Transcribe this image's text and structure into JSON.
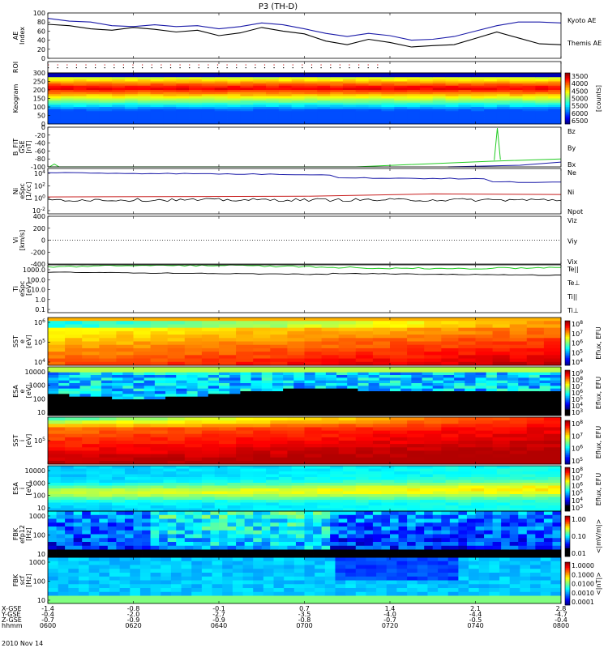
{
  "figure": {
    "title": "P3 (TH-D)",
    "date_label": "2010 Nov 14"
  },
  "colors": {
    "black": "#000000",
    "blue": "#1a1aa8",
    "red": "#c81e1e",
    "green": "#22cc22"
  },
  "chart_data": [
    {
      "type": "line",
      "name": "ae",
      "ylabel": "AE Index",
      "ylim": [
        0,
        100
      ],
      "yticks": [
        0,
        20,
        40,
        60,
        80,
        100
      ],
      "legend": [
        {
          "label": "Kyoto AE",
          "color": "#1a1aa8"
        },
        {
          "label": "Themis AE",
          "color": "#000000"
        }
      ],
      "x_minutes": [
        0,
        5,
        10,
        15,
        20,
        25,
        30,
        35,
        40,
        45,
        50,
        55,
        60,
        65,
        70,
        75,
        80,
        85,
        90,
        95,
        100,
        105,
        110,
        115,
        120
      ],
      "series": [
        {
          "name": "Kyoto AE",
          "color": "#1a1aa8",
          "values": [
            88,
            82,
            80,
            72,
            70,
            74,
            70,
            72,
            65,
            70,
            78,
            74,
            65,
            55,
            48,
            55,
            50,
            40,
            42,
            48,
            60,
            72,
            80,
            80,
            78
          ]
        },
        {
          "name": "Themis AE",
          "color": "#000000",
          "values": [
            75,
            72,
            65,
            62,
            68,
            64,
            58,
            62,
            50,
            56,
            68,
            60,
            54,
            38,
            30,
            42,
            35,
            25,
            28,
            30,
            44,
            58,
            45,
            32,
            30
          ]
        }
      ]
    },
    {
      "type": "scatter",
      "name": "roi",
      "ylabel": "ROI",
      "yticks": [],
      "rows": [
        {
          "color": "#c81e1e",
          "x_end": 78
        },
        {
          "color": "#000000",
          "x_end": 78
        }
      ]
    },
    {
      "type": "heatmap",
      "name": "keogram",
      "ylabel": "Keogram",
      "ylim": [
        0,
        300
      ],
      "yticks": [
        0,
        50,
        100,
        150,
        200,
        250,
        300
      ],
      "colorbar": {
        "ticks": [
          "3500",
          "4000",
          "4500",
          "5000",
          "5500",
          "6000",
          "6500"
        ],
        "units": "[counts]"
      }
    },
    {
      "type": "line",
      "name": "bfield",
      "ylabel": "B_FIT GSE [nT]",
      "ylim": [
        -100,
        0
      ],
      "yticks": [
        -100,
        -80,
        -60,
        -40,
        -20,
        0
      ],
      "legend": [
        {
          "label": "Bz",
          "color": "#c81e1e"
        },
        {
          "label": "By",
          "color": "#22cc22"
        },
        {
          "label": "Bx",
          "color": "#1a1aa8"
        }
      ]
    },
    {
      "type": "line",
      "name": "density",
      "ylabel": "Ni eSpc [1/cc]",
      "yscale": "log",
      "yticks": [
        "10^4",
        "10^2",
        "10^0",
        "10^-2"
      ],
      "legend": [
        {
          "label": "Ne",
          "color": "#c81e1e"
        },
        {
          "label": "Ni",
          "color": "#000000"
        },
        {
          "label": "Npot",
          "color": "#1a1aa8"
        }
      ]
    },
    {
      "type": "line",
      "name": "velocity",
      "ylabel": "Vi [km/s]",
      "ylim": [
        -400,
        400
      ],
      "yticks": [
        -400,
        -200,
        0,
        200,
        400
      ],
      "legend": [
        {
          "label": "Viz",
          "color": "#c81e1e"
        },
        {
          "label": "Viy",
          "color": "#22cc22"
        },
        {
          "label": "Vix",
          "color": "#1a1aa8"
        }
      ]
    },
    {
      "type": "line",
      "name": "temperature",
      "ylabel": "Ti eSpc [eV]",
      "yscale": "log",
      "yticks": [
        "1000.0",
        "100.0",
        "10.0",
        "1.0",
        "0.1"
      ],
      "legend": [
        {
          "label": "Te||",
          "color": "#000000"
        },
        {
          "label": "Te⊥",
          "color": "#c81e1e"
        },
        {
          "label": "Ti||",
          "color": "#22cc22"
        },
        {
          "label": "Ti⊥",
          "color": "#1a1aa8"
        }
      ]
    },
    {
      "type": "heatmap",
      "name": "sst_e",
      "ylabel": "SST e [eV]",
      "yticks": [
        "10^6",
        "10^5",
        "10^4"
      ],
      "colorbar": {
        "ticks": [
          "10^8",
          "10^7",
          "10^6",
          "10^5",
          "10^4"
        ],
        "units": "Eflux, EFU"
      }
    },
    {
      "type": "heatmap",
      "name": "esa_e",
      "ylabel": "ESA e [eV]",
      "yticks": [
        "10000",
        "1000",
        "100",
        "10"
      ],
      "colorbar": {
        "ticks": [
          "10^9",
          "10^8",
          "10^7",
          "10^6",
          "10^5",
          "10^4",
          "10^3"
        ],
        "units": "Eflux, EFU"
      }
    },
    {
      "type": "heatmap",
      "name": "sst_i",
      "ylabel": "SST i [eV]",
      "yticks": [
        "10^5"
      ],
      "colorbar": {
        "ticks": [
          "10^8",
          "10^7",
          "10^6",
          "10^5"
        ],
        "units": "Eflux, EFU"
      }
    },
    {
      "type": "heatmap",
      "name": "esa_i",
      "ylabel": "ESA i [eV]",
      "yticks": [
        "10000",
        "1000",
        "100",
        "10"
      ],
      "colorbar": {
        "ticks": [
          "10^8",
          "10^7",
          "10^6",
          "10^5",
          "10^4",
          "10^3"
        ],
        "units": "Eflux, EFU"
      }
    },
    {
      "type": "heatmap",
      "name": "fbk_e12",
      "ylabel": "FBK efp12 [Hz]",
      "yticks": [
        "1000",
        "100",
        "10"
      ],
      "colorbar": {
        "ticks": [
          "1.00",
          "0.10",
          "0.01"
        ],
        "units": "<|mV/m|>"
      }
    },
    {
      "type": "heatmap",
      "name": "fbk_scm",
      "ylabel": "FBK scf [Hz]",
      "yticks": [
        "1000",
        "100",
        "10"
      ],
      "colorbar": {
        "ticks": [
          "1.0000",
          "0.1000",
          "0.0100",
          "0.0010",
          "0.0001"
        ],
        "units": "<|nT|>"
      }
    }
  ],
  "x_axis": {
    "row_labels": [
      "X-GSE",
      "Y-GSE",
      "Z-GSE",
      "hhmm"
    ],
    "ticks": [
      {
        "x": "-1.4",
        "y": "-0.4",
        "z": "-0.7",
        "hhmm": "0600"
      },
      {
        "x": "-0.8",
        "y": "-2.0",
        "z": "-0.9",
        "hhmm": "0620"
      },
      {
        "x": "-0.1",
        "y": "-2.7",
        "z": "-0.9",
        "hhmm": "0640"
      },
      {
        "x": "0.7",
        "y": "-3.5",
        "z": "-0.8",
        "hhmm": "0700"
      },
      {
        "x": "1.4",
        "y": "-4.0",
        "z": "-0.7",
        "hhmm": "0720"
      },
      {
        "x": "2.1",
        "y": "-4.4",
        "z": "-0.5",
        "hhmm": "0740"
      },
      {
        "x": "2.8",
        "y": "-4.7",
        "z": "-0.4",
        "hhmm": "0800"
      }
    ]
  }
}
